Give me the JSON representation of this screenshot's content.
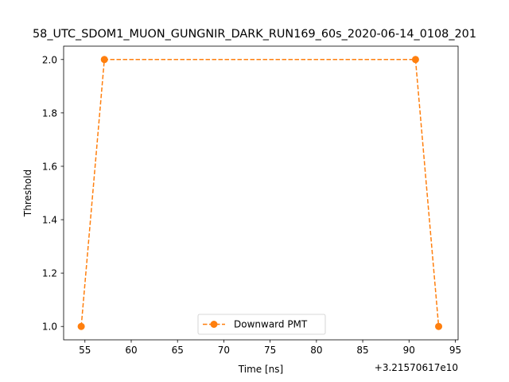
{
  "chart_data": {
    "type": "line",
    "title": "58_UTC_SDOM1_MUON_GUNGNIR_DARK_RUN169_60s_2020-06-14_0108_201",
    "xlabel": "Time [ns]",
    "ylabel": "Threshold",
    "x_offset_label": "+3.21570617e10",
    "xlim": [
      52.7,
      95.3
    ],
    "ylim": [
      0.95,
      2.05
    ],
    "x_ticks": [
      55,
      60,
      65,
      70,
      75,
      80,
      85,
      90,
      95
    ],
    "y_ticks": [
      1.0,
      1.2,
      1.4,
      1.6,
      1.8,
      2.0
    ],
    "x_tick_labels": [
      "55",
      "60",
      "65",
      "70",
      "75",
      "80",
      "85",
      "90",
      "95"
    ],
    "y_tick_labels": [
      "1.0",
      "1.2",
      "1.4",
      "1.6",
      "1.8",
      "2.0"
    ],
    "grid": false,
    "legend_position": "bottom-center",
    "series": [
      {
        "name": "Downward PMT",
        "color": "#ff7f0e",
        "line_style": "dashed",
        "marker": "circle",
        "x": [
          54.6,
          57.1,
          90.7,
          93.2
        ],
        "y": [
          1.0,
          2.0,
          2.0,
          1.0
        ]
      }
    ]
  }
}
